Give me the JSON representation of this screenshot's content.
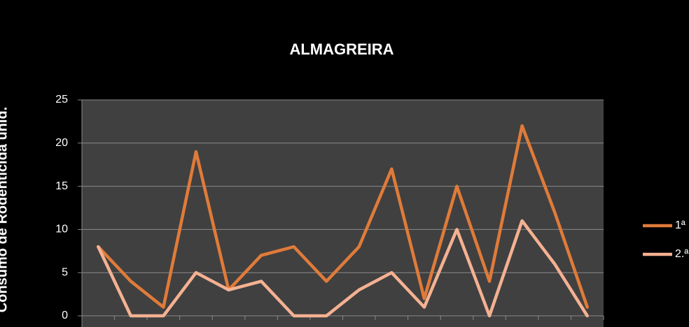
{
  "chart_data": {
    "type": "line",
    "title": "ALMAGREIRA",
    "y_label": "Consumo de Rodenticida unid.",
    "categories": [
      null,
      null,
      null,
      null,
      null,
      null,
      null,
      null,
      null,
      null,
      null,
      null,
      null,
      null,
      null,
      null
    ],
    "series": [
      {
        "name": "1ª",
        "color": "#e07b39",
        "values": [
          8,
          4,
          1,
          19,
          3,
          7,
          8,
          4,
          8,
          17,
          2,
          15,
          4,
          22,
          12,
          1
        ]
      },
      {
        "name": "2.ª",
        "color": "#f5b192",
        "values": [
          8,
          0,
          0,
          5,
          3,
          4,
          0,
          0,
          3,
          5,
          1,
          10,
          0,
          11,
          6,
          0
        ]
      }
    ],
    "ylim": [
      0,
      25
    ],
    "yticks": [
      0,
      5,
      10,
      15,
      20,
      25
    ],
    "grid": true,
    "legend": "right"
  }
}
